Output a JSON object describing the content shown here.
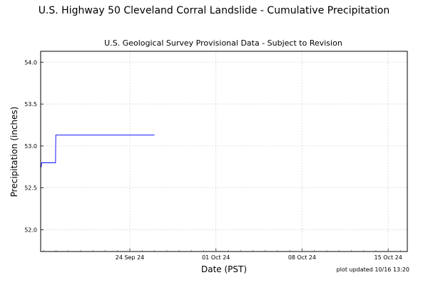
{
  "chart_data": {
    "type": "line",
    "title": "U.S. Highway 50 Cleveland Corral Landslide - Cumulative Precipitation",
    "subtitle": "U.S. Geological Survey Provisional Data - Subject to Revision",
    "xlabel": "Date (PST)",
    "ylabel": "Precipitation (inches)",
    "footnote": "plot updated 10/16 13:20",
    "xlim": [
      "2024-09-16T18:00",
      "2024-10-16T13:20"
    ],
    "ylim": [
      51.74,
      54.13
    ],
    "x_ticks": [
      {
        "date": "2024-09-24",
        "label": "24 Sep 24"
      },
      {
        "date": "2024-10-01",
        "label": "01 Oct 24"
      },
      {
        "date": "2024-10-08",
        "label": "08 Oct 24"
      },
      {
        "date": "2024-10-15",
        "label": "15 Oct 24"
      }
    ],
    "x_minor_ticks_days": 1,
    "y_ticks": [
      52.0,
      52.5,
      53.0,
      53.5,
      54.0
    ],
    "y_tick_labels": [
      "52.0",
      "52.5",
      "53.0",
      "53.5",
      "54.0"
    ],
    "grid": true,
    "line_color": "#0000ff",
    "series": [
      {
        "x": [
          "2024-09-16T18:00",
          "2024-09-16T19:00",
          "2024-09-16T20:00",
          "2024-09-17T23:00",
          "2024-09-17T23:30",
          "2024-09-26T00:00"
        ],
        "y": [
          52.75,
          52.75,
          52.8,
          52.8,
          53.13,
          53.13
        ]
      }
    ]
  }
}
